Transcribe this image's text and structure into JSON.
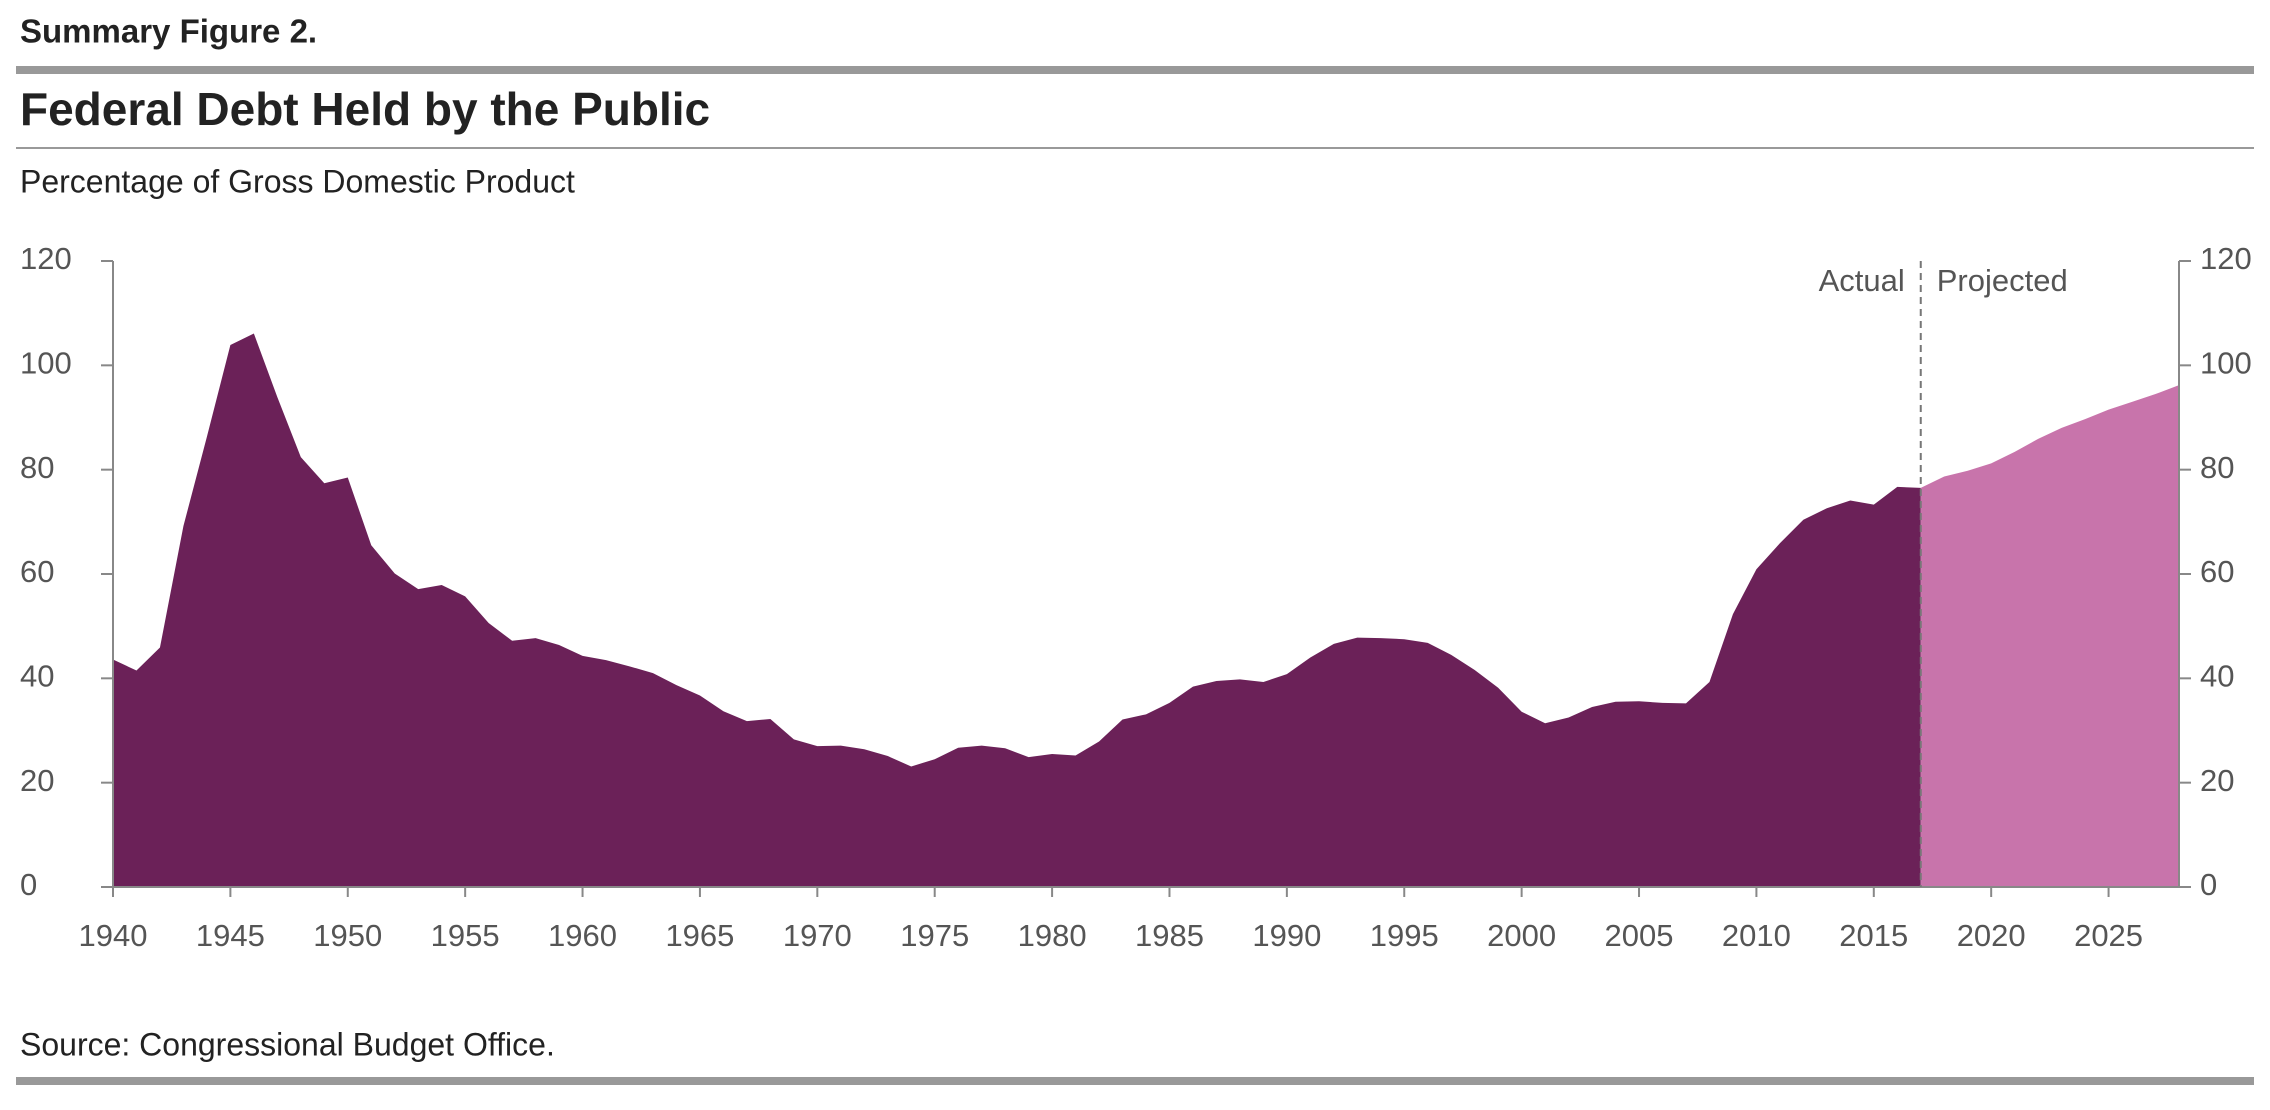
{
  "chart_data": {
    "type": "area",
    "label": "Summary Figure 2.",
    "title": "Federal Debt Held by the Public",
    "subtitle": "Percentage of Gross Domestic Product",
    "source": "Source: Congressional Budget Office.",
    "xlim": [
      1940,
      2028
    ],
    "xticks": [
      1940,
      1945,
      1950,
      1955,
      1960,
      1965,
      1970,
      1975,
      1980,
      1985,
      1990,
      1995,
      2000,
      2005,
      2010,
      2015,
      2020,
      2025
    ],
    "ylim": [
      0,
      120
    ],
    "yticks": [
      0,
      20,
      40,
      60,
      80,
      100,
      120
    ],
    "series": [
      {
        "name": "Actual",
        "color": "#6b2158",
        "x": [
          1940,
          1941,
          1942,
          1943,
          1944,
          1945,
          1946,
          1947,
          1948,
          1949,
          1950,
          1951,
          1952,
          1953,
          1954,
          1955,
          1956,
          1957,
          1958,
          1959,
          1960,
          1961,
          1962,
          1963,
          1964,
          1965,
          1966,
          1967,
          1968,
          1969,
          1970,
          1971,
          1972,
          1973,
          1974,
          1975,
          1976,
          1977,
          1978,
          1979,
          1980,
          1981,
          1982,
          1983,
          1984,
          1985,
          1986,
          1987,
          1988,
          1989,
          1990,
          1991,
          1992,
          1993,
          1994,
          1995,
          1996,
          1997,
          1998,
          1999,
          2000,
          2001,
          2002,
          2003,
          2004,
          2005,
          2006,
          2007,
          2008,
          2009,
          2010,
          2011,
          2012,
          2013,
          2014,
          2015,
          2016,
          2017
        ],
        "values": [
          43.6,
          41.5,
          45.9,
          69.2,
          86.3,
          103.9,
          106.1,
          93.9,
          82.4,
          77.4,
          78.5,
          65.5,
          60.1,
          57.1,
          57.9,
          55.7,
          50.6,
          47.2,
          47.7,
          46.4,
          44.3,
          43.5,
          42.3,
          41.0,
          38.7,
          36.7,
          33.7,
          31.8,
          32.2,
          28.3,
          27.0,
          27.1,
          26.4,
          25.1,
          23.1,
          24.5,
          26.7,
          27.1,
          26.6,
          24.9,
          25.5,
          25.2,
          27.9,
          32.1,
          33.1,
          35.3,
          38.4,
          39.5,
          39.8,
          39.3,
          40.8,
          44.0,
          46.6,
          47.8,
          47.7,
          47.5,
          46.8,
          44.5,
          41.6,
          38.2,
          33.6,
          31.4,
          32.5,
          34.5,
          35.5,
          35.6,
          35.3,
          35.2,
          39.3,
          52.3,
          60.9,
          65.9,
          70.4,
          72.6,
          74.1,
          73.3,
          76.7,
          76.5
        ]
      },
      {
        "name": "Projected",
        "color": "#c874ab",
        "x": [
          2017,
          2018,
          2019,
          2020,
          2021,
          2022,
          2023,
          2024,
          2025,
          2026,
          2027,
          2028
        ],
        "values": [
          76.5,
          78.7,
          79.8,
          81.2,
          83.4,
          85.9,
          88.0,
          89.7,
          91.5,
          93.0,
          94.5,
          96.2
        ]
      }
    ]
  }
}
